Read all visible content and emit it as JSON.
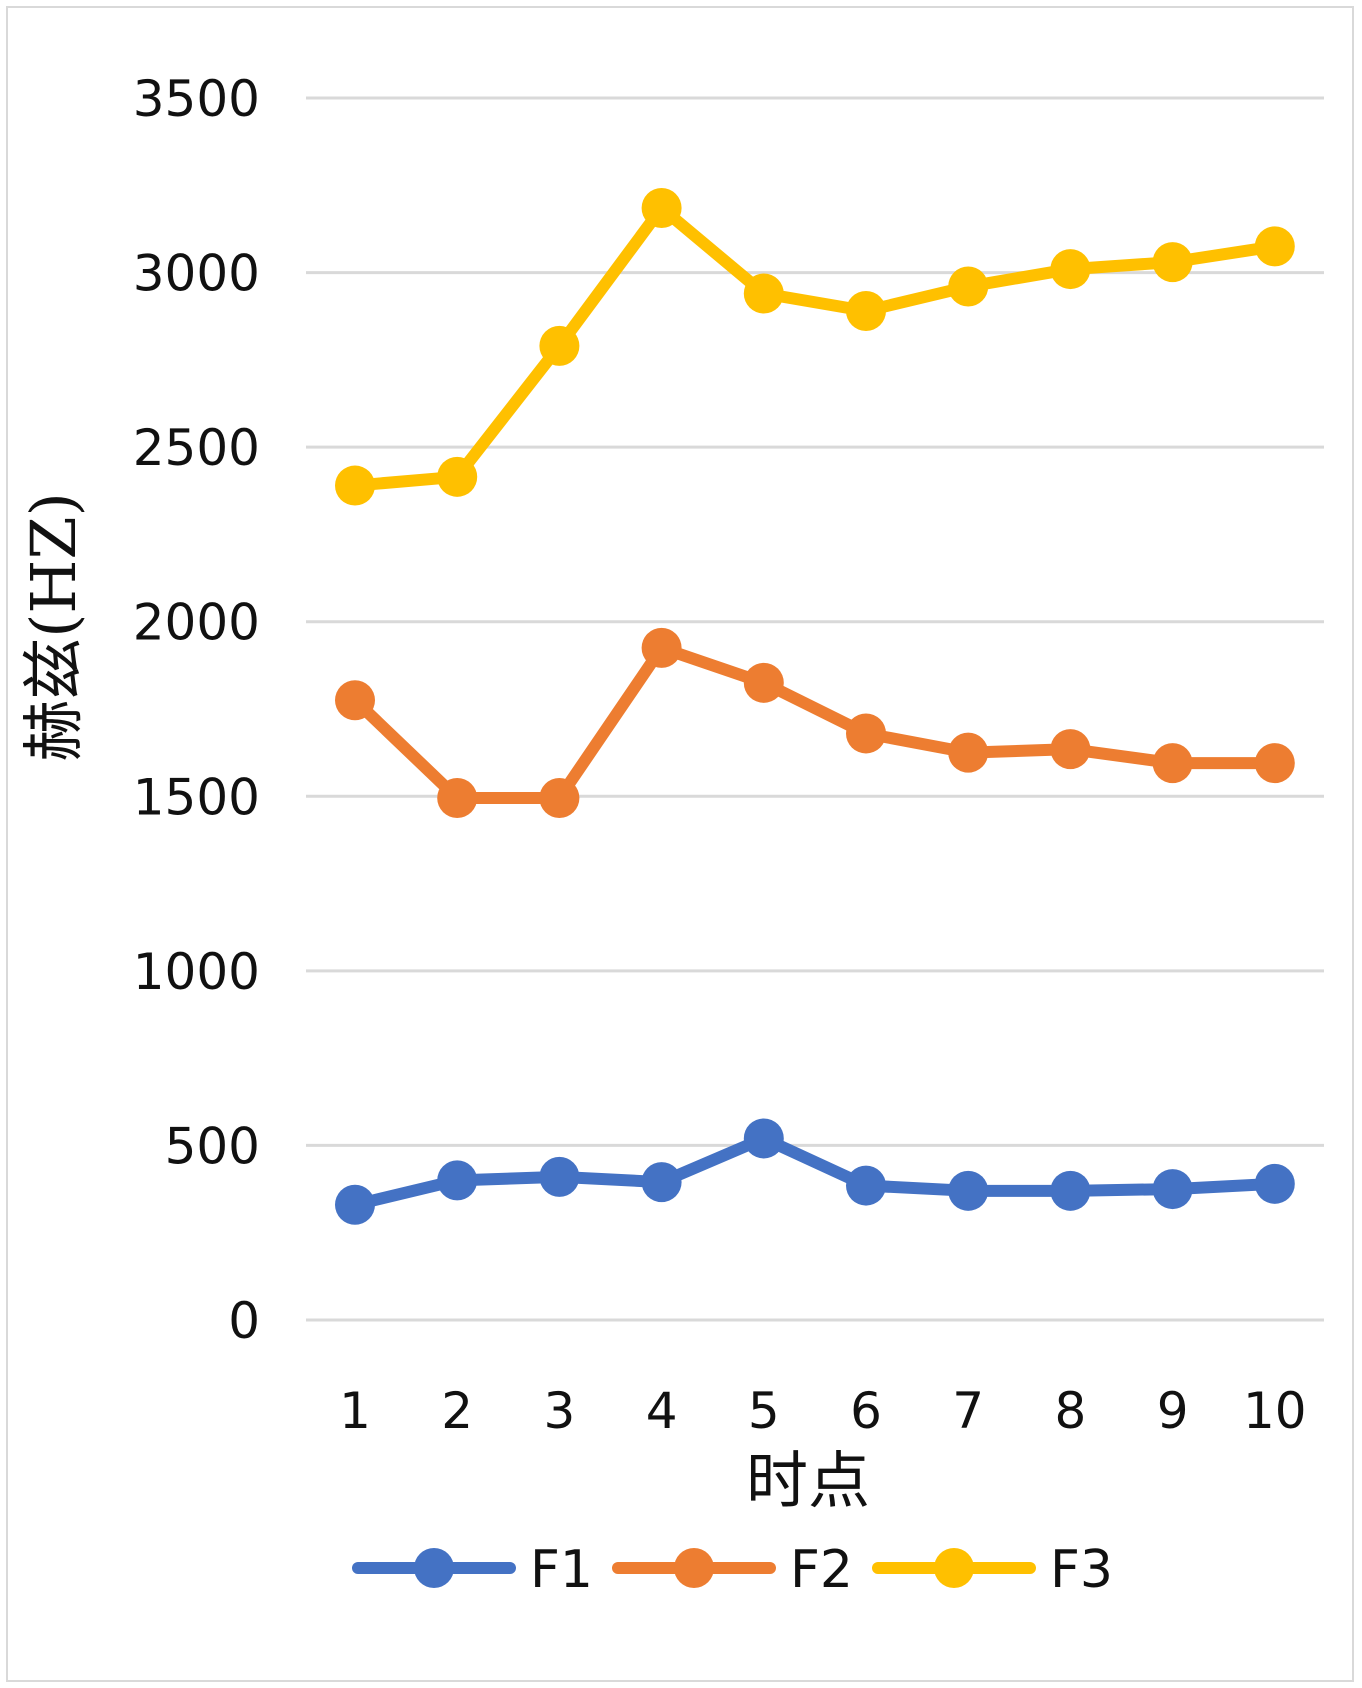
{
  "chart_data": {
    "type": "line",
    "categories": [
      "1",
      "2",
      "3",
      "4",
      "5",
      "6",
      "7",
      "8",
      "9",
      "10"
    ],
    "xlabel": "时点",
    "ylabel": "赫兹(HZ)",
    "ylim": [
      0,
      3500
    ],
    "yticks": [
      "0",
      "500",
      "1000",
      "1500",
      "2000",
      "2500",
      "3000",
      "3500"
    ],
    "grid": true,
    "legend_position": "bottom",
    "series": [
      {
        "name": "F1",
        "color": "#4472c4",
        "values": [
          330,
          400,
          410,
          395,
          520,
          385,
          370,
          370,
          375,
          390
        ]
      },
      {
        "name": "F2",
        "color": "#ed7d31",
        "values": [
          1775,
          1495,
          1495,
          1925,
          1825,
          1680,
          1625,
          1635,
          1595,
          1595
        ]
      },
      {
        "name": "F3",
        "color": "#ffc000",
        "values": [
          2390,
          2415,
          2790,
          3185,
          2940,
          2890,
          2960,
          3010,
          3030,
          3075
        ]
      }
    ]
  }
}
